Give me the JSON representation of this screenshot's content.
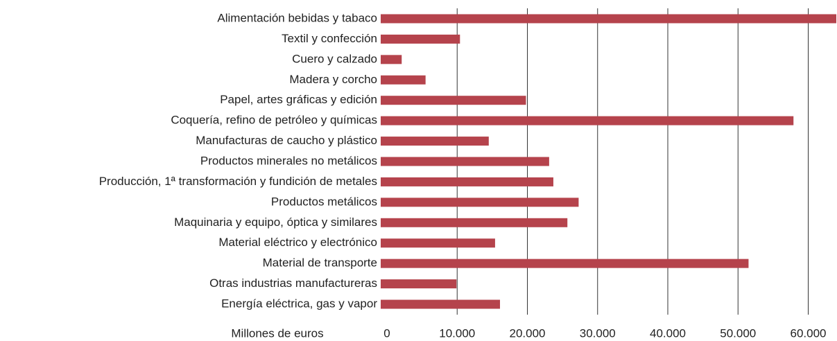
{
  "chart_data": {
    "type": "hbar",
    "xlabel": "Millones de euros",
    "categories": [
      "Alimentación bebidas y tabaco",
      "Textil y confección",
      "Cuero y calzado",
      "Madera y corcho",
      "Papel, artes gráficas y edición",
      "Coquería, refino de petróleo y químicas",
      "Manufacturas de caucho y plástico",
      "Productos minerales no metálicos",
      "Producción, 1ª transformación y fundición de metales",
      "Productos  metálicos",
      "Maquinaria y equipo, óptica y similares",
      "Material eléctrico y electrónico",
      "Material de transporte",
      "Otras industrias manufactureras",
      "Energía eléctrica, gas y vapor"
    ],
    "values": [
      64000,
      10400,
      2100,
      5500,
      19800,
      57900,
      14500,
      23100,
      23700,
      27300,
      25700,
      15400,
      51500,
      9900,
      16100
    ],
    "color": "#b5434c",
    "xlim": [
      0,
      64000
    ],
    "xticks": [
      0,
      {
        "value": 10000,
        "label": "10.000"
      },
      {
        "value": 20000,
        "label": "20.000"
      },
      {
        "value": 30000,
        "label": "30.000"
      },
      {
        "value": 40000,
        "label": "40.000"
      },
      {
        "value": 50000,
        "label": "50.000"
      },
      {
        "value": 60000,
        "label": "60.000"
      }
    ],
    "grid": true
  }
}
